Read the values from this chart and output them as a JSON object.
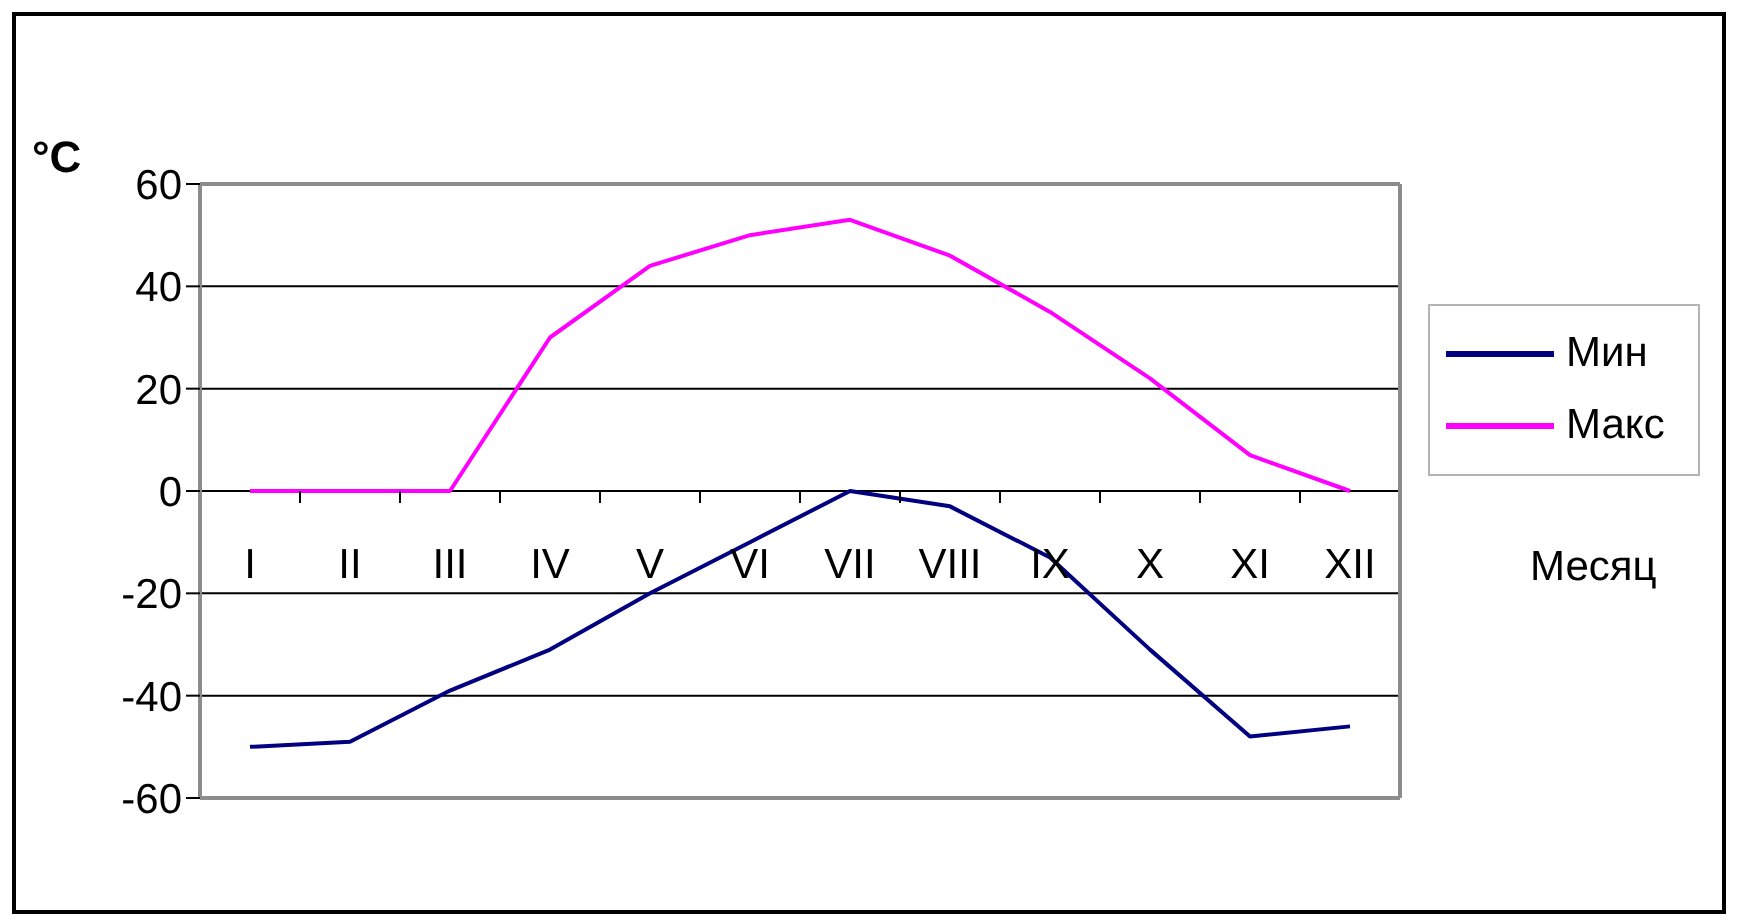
{
  "chart_data": {
    "type": "line",
    "ylabel": "°C",
    "xlabel": "Месяц",
    "categories": [
      "I",
      "II",
      "III",
      "IV",
      "V",
      "VI",
      "VII",
      "VIII",
      "IX",
      "X",
      "XI",
      "XII"
    ],
    "series": [
      {
        "name": "Мин",
        "color": "#000080",
        "values": [
          -50,
          -49,
          -39,
          -31,
          -20,
          -10,
          0,
          -3,
          -13,
          -31,
          -48,
          -46
        ]
      },
      {
        "name": "Макс",
        "color": "#ff00ff",
        "values": [
          0,
          0,
          0,
          30,
          44,
          50,
          53,
          46,
          35,
          22,
          7,
          0
        ]
      }
    ],
    "ylim": [
      -60,
      60
    ],
    "yticks": [
      -60,
      -40,
      -20,
      0,
      20,
      40,
      60
    ],
    "grid": "y",
    "legend": "right",
    "marker": "none",
    "line_style": "solid"
  }
}
